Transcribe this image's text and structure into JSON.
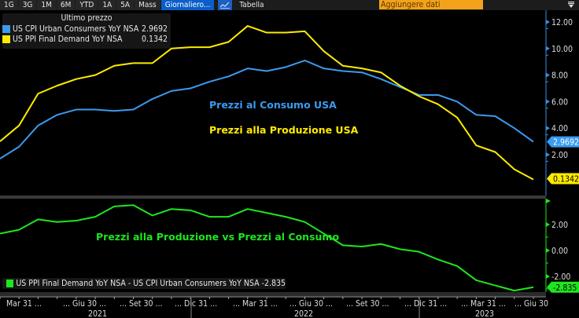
{
  "toolbar": {
    "ranges": [
      "1G",
      "3G",
      "1M",
      "6M",
      "YTD",
      "1A",
      "5A",
      "Mass"
    ],
    "frequency": "Giornaliero...",
    "chart_icon": "line-chart-icon",
    "table_label": "Tabella",
    "add_data_placeholder": "Aggiungere dati",
    "menu_icon": "filter-menu-icon"
  },
  "colors": {
    "cpi": "#3a9bf0",
    "ppi": "#ffeb00",
    "diff": "#1ee61e",
    "active_tab": "#0b5ec8",
    "add_data_bg": "#f4a21c"
  },
  "legend_top": {
    "header": "Ultimo prezzo",
    "items": [
      {
        "label": "US CPI Urban Consumers YoY NSA",
        "value": "2.9692"
      },
      {
        "label": "US PPI Final Demand YoY NSA",
        "value": "0.1342"
      }
    ]
  },
  "legend_bottom": {
    "label": "US PPI Final Demand YoY NSA - US CPI Urban Consumers YoY NSA -2.835"
  },
  "annotations": {
    "cpi": "Prezzi al Consumo USA",
    "ppi": "Prezzi alla Produzione USA",
    "diff": "Prezzi alla Produzione vs Prezzi al Consumo"
  },
  "chart_data": [
    {
      "type": "line",
      "title": "",
      "x": [
        "Feb 2021",
        "Mar 2021",
        "Apr 2021",
        "May 2021",
        "Jun 2021",
        "Jul 2021",
        "Aug 2021",
        "Sep 2021",
        "Oct 2021",
        "Nov 2021",
        "Dec 2021",
        "Jan 2022",
        "Feb 2022",
        "Mar 2022",
        "Apr 2022",
        "May 2022",
        "Jun 2022",
        "Jul 2022",
        "Aug 2022",
        "Sep 2022",
        "Oct 2022",
        "Nov 2022",
        "Dec 2022",
        "Jan 2023",
        "Feb 2023",
        "Mar 2023",
        "Apr 2023",
        "May 2023",
        "Jun 2023"
      ],
      "series": [
        {
          "name": "US CPI Urban Consumers YoY NSA",
          "last": "2.9692",
          "values": [
            1.7,
            2.6,
            4.2,
            5.0,
            5.4,
            5.4,
            5.3,
            5.4,
            6.2,
            6.8,
            7.0,
            7.5,
            7.9,
            8.5,
            8.3,
            8.6,
            9.1,
            8.5,
            8.3,
            8.2,
            7.7,
            7.1,
            6.5,
            6.5,
            6.0,
            5.0,
            4.9,
            4.0,
            2.97
          ]
        },
        {
          "name": "US PPI Final Demand YoY NSA",
          "last": "0.1342",
          "values": [
            3.0,
            4.2,
            6.6,
            7.2,
            7.7,
            8.0,
            8.7,
            8.9,
            8.9,
            10.0,
            10.1,
            10.1,
            10.5,
            11.7,
            11.2,
            11.2,
            11.3,
            9.8,
            8.7,
            8.5,
            8.2,
            7.2,
            6.4,
            5.8,
            4.8,
            2.7,
            2.2,
            0.9,
            0.13
          ]
        }
      ],
      "yticks": [
        "2.00",
        "4.00",
        "6.00",
        "8.00",
        "10.00",
        "12.00"
      ],
      "ylim": [
        0,
        13.5
      ],
      "xlabel": "",
      "ylabel": "",
      "grid": false,
      "legend": "top-left"
    },
    {
      "type": "line",
      "title": "",
      "x_ref": "same as upper pane",
      "series": [
        {
          "name": "US PPI Final Demand YoY NSA - US CPI Urban Consumers YoY NSA",
          "last": "-2.835",
          "values": [
            1.3,
            1.6,
            2.4,
            2.2,
            2.3,
            2.6,
            3.4,
            3.5,
            2.7,
            3.2,
            3.1,
            2.6,
            2.6,
            3.2,
            2.9,
            2.6,
            2.2,
            1.3,
            0.4,
            0.3,
            0.5,
            0.1,
            -0.1,
            -0.7,
            -1.2,
            -2.3,
            -2.7,
            -3.1,
            -2.835
          ]
        }
      ],
      "yticks": [
        "-2.00",
        "0.00",
        "2.00"
      ],
      "ylim": [
        -3.8,
        4.0
      ],
      "grid": false,
      "legend": "bottom-left"
    }
  ],
  "x_axis": {
    "ticks": [
      "Mar 31 ...",
      "... Giu 30 ...",
      "... Set 30 ...",
      "... Dic 31 ...",
      "... Mar 31 ...",
      "... Giu 30 ...",
      "... Set 30 ...",
      "... Dic 31 ...",
      "... Mar 31 ...",
      "... Giu 30"
    ],
    "years": [
      "2021",
      "2022",
      "2023"
    ]
  }
}
